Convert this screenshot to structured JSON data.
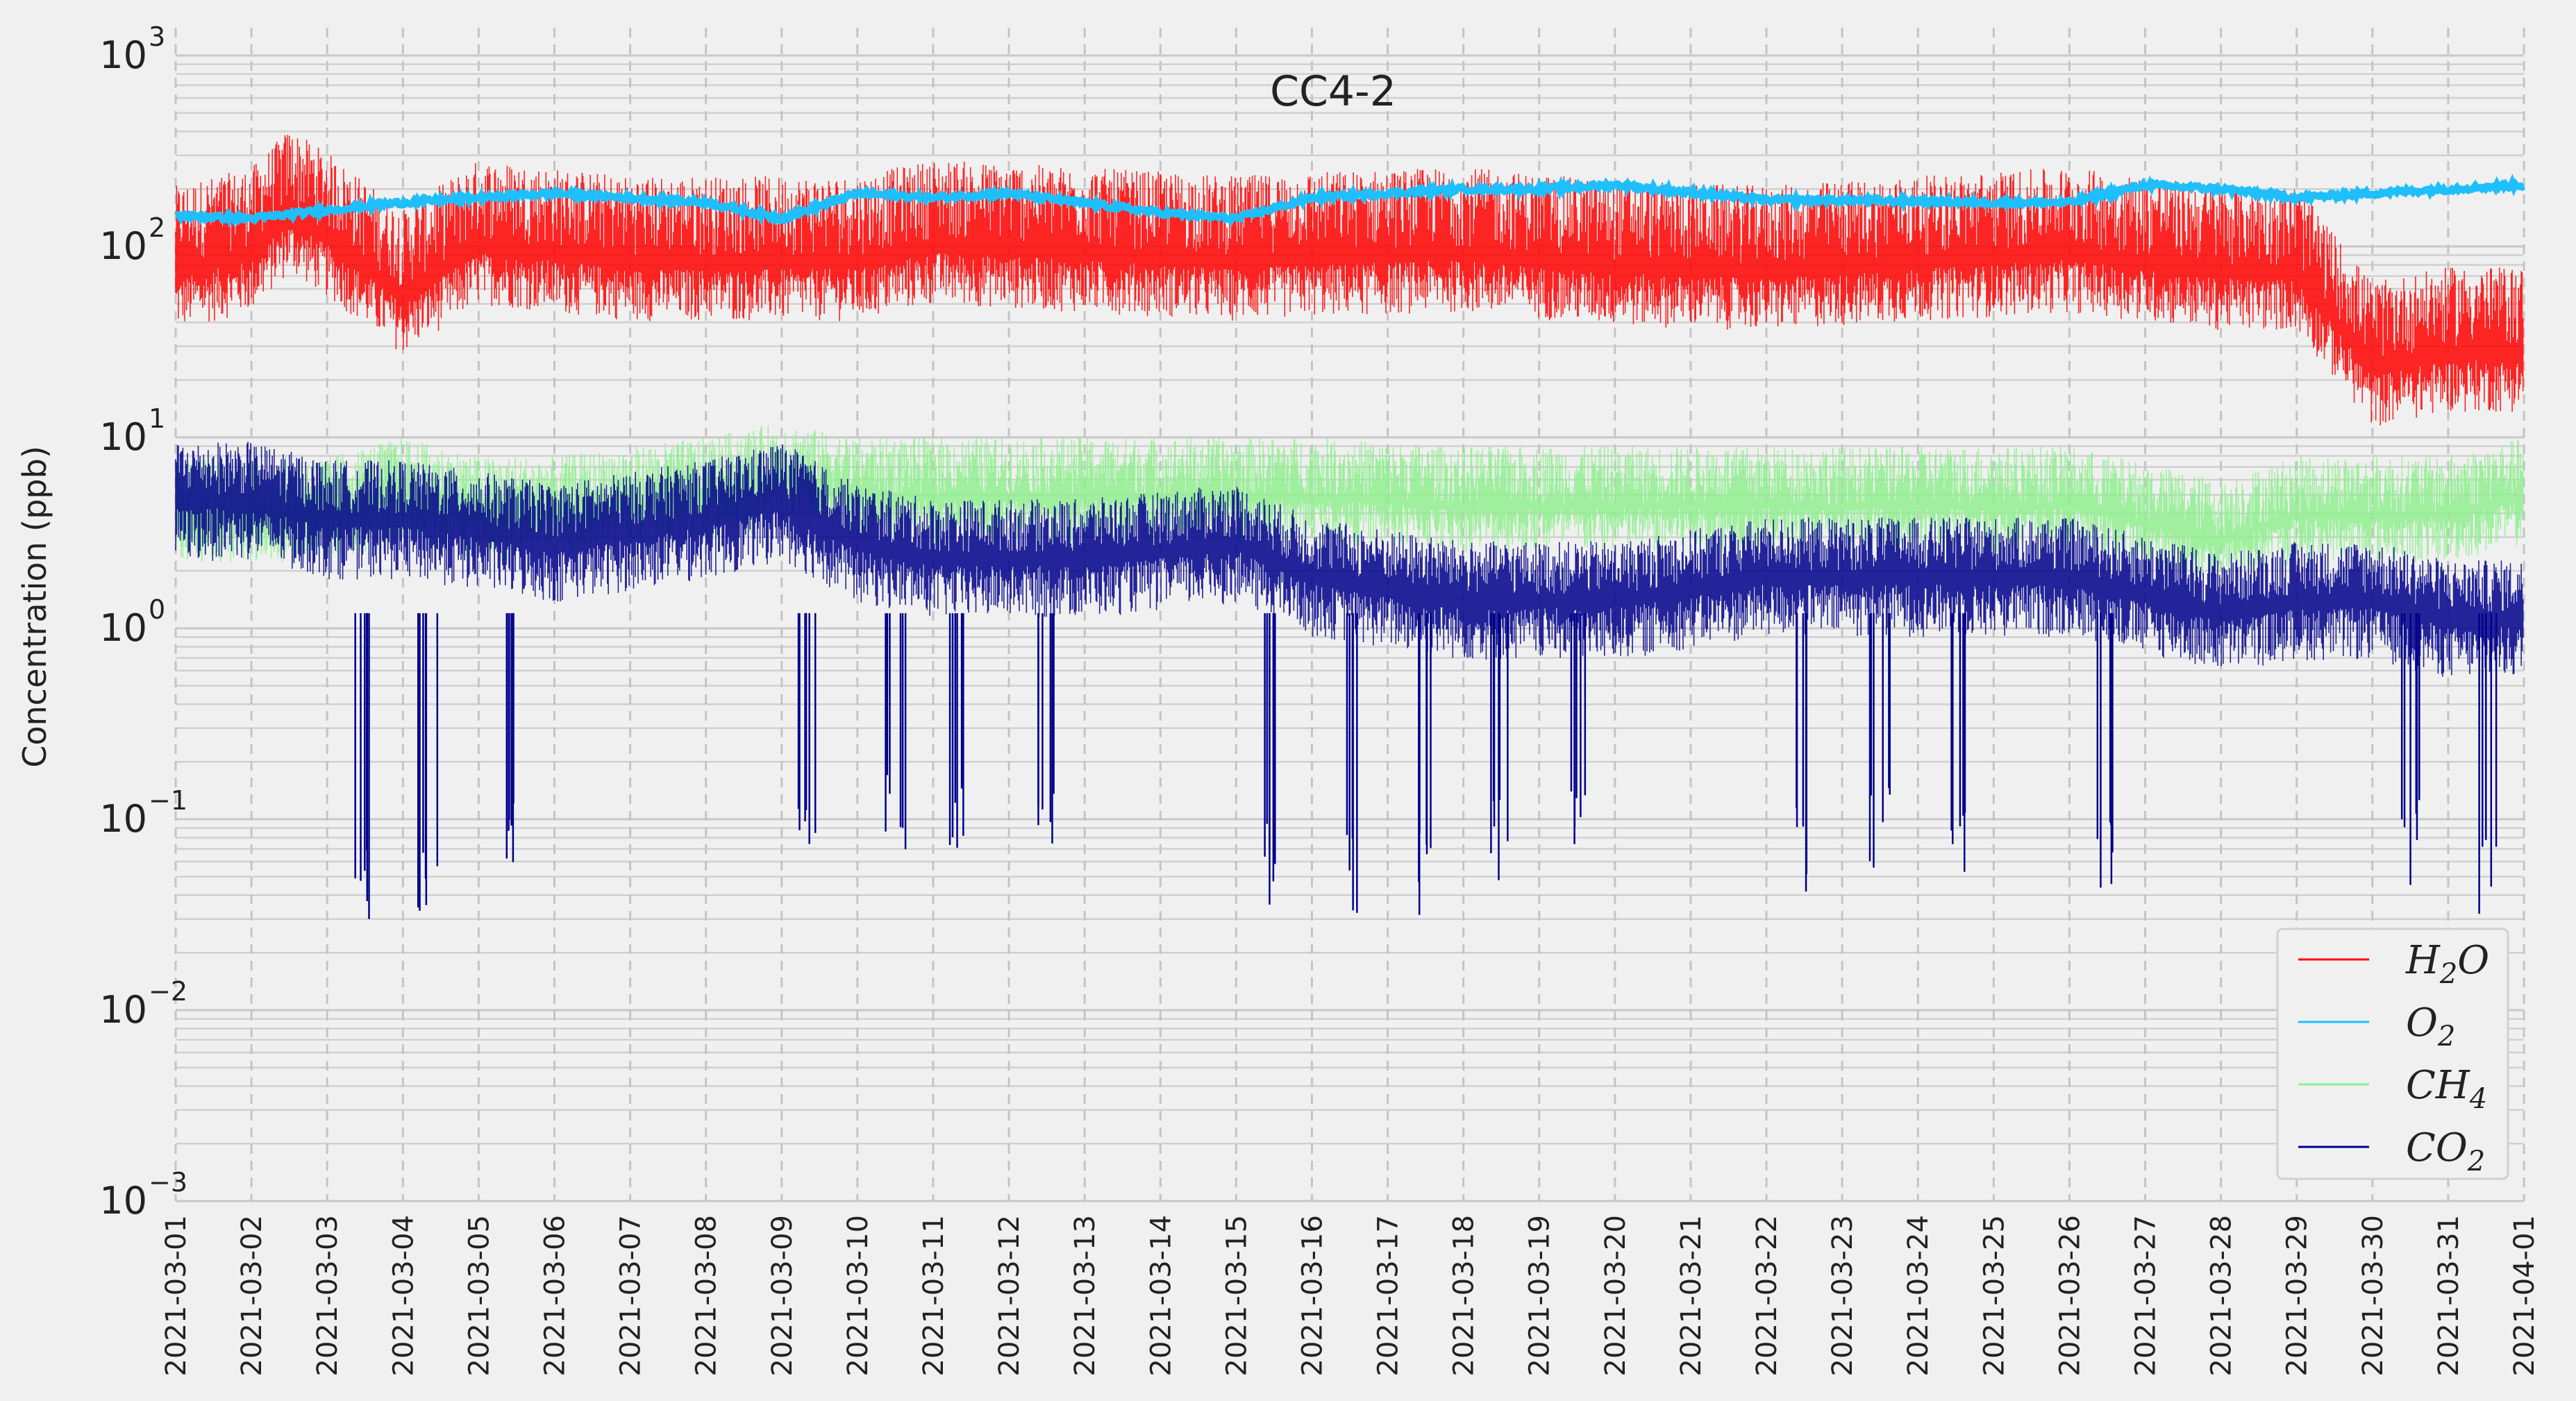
{
  "chart_data": {
    "type": "line",
    "title": "CC4-2",
    "xlabel": "",
    "ylabel": "Concentration (ppb)",
    "yscale": "log",
    "ylim": [
      0.001,
      1000
    ],
    "xlim": [
      "2021-03-01",
      "2021-04-01"
    ],
    "x_ticks": [
      "2021-03-01",
      "2021-03-02",
      "2021-03-03",
      "2021-03-04",
      "2021-03-05",
      "2021-03-06",
      "2021-03-07",
      "2021-03-08",
      "2021-03-09",
      "2021-03-10",
      "2021-03-11",
      "2021-03-12",
      "2021-03-13",
      "2021-03-14",
      "2021-03-15",
      "2021-03-16",
      "2021-03-17",
      "2021-03-18",
      "2021-03-19",
      "2021-03-20",
      "2021-03-21",
      "2021-03-22",
      "2021-03-23",
      "2021-03-24",
      "2021-03-25",
      "2021-03-26",
      "2021-03-27",
      "2021-03-28",
      "2021-03-29",
      "2021-03-30",
      "2021-03-31",
      "2021-04-01"
    ],
    "y_ticks": [
      {
        "value": 0.001,
        "base": "10",
        "exp": "−3"
      },
      {
        "value": 0.01,
        "base": "10",
        "exp": "−2"
      },
      {
        "value": 0.1,
        "base": "10",
        "exp": "−1"
      },
      {
        "value": 1,
        "base": "10",
        "exp": "0"
      },
      {
        "value": 10,
        "base": "10",
        "exp": "1"
      },
      {
        "value": 100,
        "base": "10",
        "exp": "2"
      },
      {
        "value": 1000,
        "base": "10",
        "exp": "3"
      }
    ],
    "grid": true,
    "legend_position": "bottom-right",
    "legend": [
      {
        "main": "H",
        "sub": "2",
        "tail": "O",
        "color": "#ff0000"
      },
      {
        "main": "O",
        "sub": "2",
        "tail": "",
        "color": "#1fbfff"
      },
      {
        "main": "CH",
        "sub": "4",
        "tail": "",
        "color": "#90ee90"
      },
      {
        "main": "CO",
        "sub": "2",
        "tail": "",
        "color": "#00008b"
      }
    ],
    "series": [
      {
        "name": "H2O",
        "color": "#ff0000",
        "style": "noisy-band",
        "x": [
          "2021-03-01",
          "2021-03-02",
          "2021-03-02 12:00",
          "2021-03-03",
          "2021-03-04",
          "2021-03-05",
          "2021-03-07",
          "2021-03-09",
          "2021-03-10",
          "2021-03-11",
          "2021-03-13",
          "2021-03-15",
          "2021-03-16",
          "2021-03-18",
          "2021-03-20",
          "2021-03-22",
          "2021-03-24",
          "2021-03-26",
          "2021-03-28",
          "2021-03-29",
          "2021-03-30",
          "2021-03-31",
          "2021-04-01"
        ],
        "y": [
          80,
          100,
          160,
          120,
          60,
          110,
          90,
          90,
          90,
          110,
          100,
          90,
          95,
          100,
          85,
          80,
          90,
          100,
          80,
          80,
          25,
          30,
          30
        ]
      },
      {
        "name": "O2",
        "color": "#1fbfff",
        "style": "line",
        "x": [
          "2021-03-01",
          "2021-03-02",
          "2021-03-03",
          "2021-03-04",
          "2021-03-05",
          "2021-03-06",
          "2021-03-08",
          "2021-03-09",
          "2021-03-10",
          "2021-03-11",
          "2021-03-12",
          "2021-03-14",
          "2021-03-15",
          "2021-03-16",
          "2021-03-17",
          "2021-03-18",
          "2021-03-19",
          "2021-03-20",
          "2021-03-22",
          "2021-03-23",
          "2021-03-25",
          "2021-03-26",
          "2021-03-27",
          "2021-03-28",
          "2021-03-29",
          "2021-03-30",
          "2021-03-31",
          "2021-04-01"
        ],
        "y": [
          145,
          140,
          155,
          170,
          180,
          190,
          170,
          140,
          190,
          180,
          190,
          150,
          140,
          180,
          190,
          200,
          200,
          210,
          175,
          175,
          170,
          170,
          210,
          200,
          180,
          190,
          200,
          210
        ]
      },
      {
        "name": "CH4",
        "color": "#90ee90",
        "style": "noisy-band",
        "x": [
          "2021-03-01",
          "2021-03-02",
          "2021-03-03",
          "2021-03-04",
          "2021-03-05",
          "2021-03-06",
          "2021-03-08",
          "2021-03-09",
          "2021-03-10",
          "2021-03-11",
          "2021-03-13",
          "2021-03-15",
          "2021-03-16",
          "2021-03-18",
          "2021-03-20",
          "2021-03-22",
          "2021-03-24",
          "2021-03-26",
          "2021-03-28",
          "2021-03-29",
          "2021-03-30",
          "2021-03-31",
          "2021-04-01"
        ],
        "y": [
          4,
          4,
          4,
          5,
          4,
          4,
          5,
          6,
          5,
          5,
          5,
          5,
          5,
          4.5,
          4.5,
          4.5,
          4.5,
          4.5,
          3,
          4,
          4,
          4,
          5
        ]
      },
      {
        "name": "CO2",
        "color": "#00008b",
        "style": "noisy-band",
        "x": [
          "2021-03-01",
          "2021-03-02",
          "2021-03-03",
          "2021-03-04",
          "2021-03-05",
          "2021-03-06",
          "2021-03-08",
          "2021-03-09",
          "2021-03-10",
          "2021-03-11",
          "2021-03-13",
          "2021-03-15",
          "2021-03-16",
          "2021-03-18",
          "2021-03-20",
          "2021-03-22",
          "2021-03-24",
          "2021-03-26",
          "2021-03-28",
          "2021-03-29",
          "2021-03-30",
          "2021-03-31",
          "2021-04-01"
        ],
        "y": [
          5,
          5,
          4,
          4,
          3.5,
          3,
          4,
          5,
          3,
          2.5,
          2.5,
          3,
          2,
          1.5,
          1.5,
          2,
          2,
          2,
          1.3,
          1.5,
          1.5,
          1.2,
          1.2
        ]
      }
    ],
    "dips": [
      {
        "x": "2021-03-03 12:00",
        "min": 0.03
      },
      {
        "x": "2021-03-04 08:00",
        "min": 0.03
      },
      {
        "x": "2021-03-05 12:00",
        "min": 0.05
      },
      {
        "x": "2021-03-09 08:00",
        "min": 0.05
      },
      {
        "x": "2021-03-10 12:00",
        "min": 0.06
      },
      {
        "x": "2021-03-11 08:00",
        "min": 0.05
      },
      {
        "x": "2021-03-12 12:00",
        "min": 0.05
      },
      {
        "x": "2021-03-15 12:00",
        "min": 0.035
      },
      {
        "x": "2021-03-16 12:00",
        "min": 0.03
      },
      {
        "x": "2021-03-17 12:00",
        "min": 0.03
      },
      {
        "x": "2021-03-18 12:00",
        "min": 0.045
      },
      {
        "x": "2021-03-19 12:00",
        "min": 0.05
      },
      {
        "x": "2021-03-22 12:00",
        "min": 0.04
      },
      {
        "x": "2021-03-23 12:00",
        "min": 0.05
      },
      {
        "x": "2021-03-24 12:00",
        "min": 0.04
      },
      {
        "x": "2021-03-26 12:00",
        "min": 0.04
      },
      {
        "x": "2021-03-30 12:00",
        "min": 0.045
      },
      {
        "x": "2021-03-31 12:00",
        "min": 0.03
      }
    ]
  }
}
